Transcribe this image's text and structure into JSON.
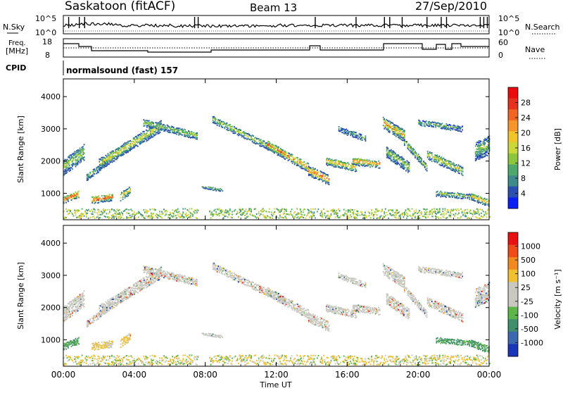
{
  "header": {
    "station": "Saskatoon (fitACF)",
    "beam": "Beam 13",
    "date": "27/Sep/2010"
  },
  "top_panel": {
    "left_label": "N.Sky",
    "right_label": "N.Search",
    "left_ticks": [
      "10^5",
      "10^0"
    ],
    "right_ticks": [
      "10^5",
      "10^0"
    ]
  },
  "freq_panel": {
    "left_label_1": "Freq.",
    "left_label_2": "[MHz]",
    "right_label": "Nave",
    "left_ticks": [
      "18",
      "8"
    ],
    "right_ticks": [
      "60",
      "0"
    ]
  },
  "cpid": {
    "label": "CPID",
    "program": "normalsound (fast) 157"
  },
  "chart_data": [
    {
      "type": "heatmap",
      "name": "power",
      "ylabel": "Slant Range [km]",
      "ylim": [
        180,
        4550
      ],
      "yticks": [
        1000,
        2000,
        3000,
        4000
      ],
      "xlim": [
        0,
        24
      ],
      "colorbar_label": "Power [dB]",
      "colorbar_ticks": [
        "28",
        "24",
        "20",
        "16",
        "12",
        "8",
        "4"
      ],
      "colors": [
        "#0a1ff5",
        "#2b4fb0",
        "#3f8a8a",
        "#4ca86b",
        "#8cc63c",
        "#c9d83a",
        "#f0c52a",
        "#f5962a",
        "#f06424",
        "#e8301e",
        "#e80c0c"
      ]
    },
    {
      "type": "heatmap",
      "name": "velocity",
      "ylabel": "Slant Range [km]",
      "ylim": [
        180,
        4550
      ],
      "yticks": [
        1000,
        2000,
        3000,
        4000
      ],
      "xlim": [
        0,
        24
      ],
      "xlabel": "Time UT",
      "xticks": [
        "00:00",
        "04:00",
        "08:00",
        "12:00",
        "16:00",
        "20:00",
        "00:00"
      ],
      "colorbar_label": "Velocity [m s⁻¹]",
      "colorbar_ticks": [
        "1000",
        "500",
        "100",
        "25",
        "-25",
        "-100",
        "-500",
        "-1000"
      ],
      "colors": [
        "#1a36b8",
        "#3b69b0",
        "#3f8f6c",
        "#5cb548",
        "#c8c8c0",
        "#c8c8c0",
        "#f0c030",
        "#f08a20",
        "#f04a18",
        "#e81010"
      ]
    }
  ]
}
